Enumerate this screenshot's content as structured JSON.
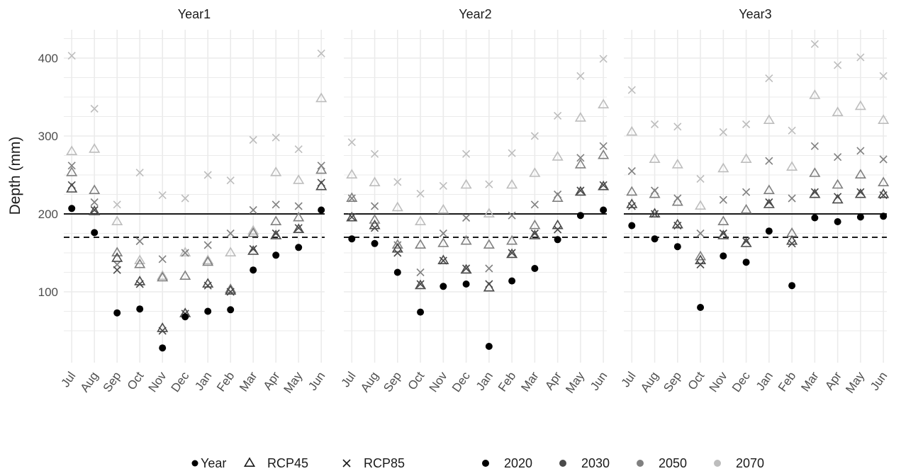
{
  "chart_data": {
    "type": "scatter",
    "ylabel": "Depth (mm)",
    "ylim": [
      0,
      440
    ],
    "y_ticks": [
      "100",
      "200",
      "300",
      "400"
    ],
    "categories": [
      "Jul",
      "Aug",
      "Sep",
      "Oct",
      "Nov",
      "Dec",
      "Jan",
      "Feb",
      "Mar",
      "Apr",
      "May",
      "Jun"
    ],
    "reference_lines": [
      {
        "style": "solid",
        "value": 200
      },
      {
        "style": "dashed",
        "value": 170
      }
    ],
    "grid": true,
    "legend": {
      "placement": "bottom",
      "title": "Year",
      "shape_items": [
        {
          "label": "RCP45",
          "shape": "triangle"
        },
        {
          "label": "RCP85",
          "shape": "cross"
        }
      ],
      "color_items": [
        {
          "label": "2020",
          "color": "#000000"
        },
        {
          "label": "2030",
          "color": "#4a4a4a"
        },
        {
          "label": "2050",
          "color": "#808080"
        },
        {
          "label": "2070",
          "color": "#bdbdbd"
        }
      ]
    },
    "panels": [
      {
        "title": "Year1",
        "baseline_2020": [
          207,
          176,
          73,
          78,
          28,
          68,
          75,
          77,
          128,
          147,
          157,
          205
        ],
        "rcp45": {
          "2030": [
            232,
            203,
            143,
            113,
            53,
            72,
            110,
            101,
            152,
            172,
            180,
            235
          ],
          "2050": [
            253,
            230,
            150,
            135,
            118,
            120,
            138,
            103,
            175,
            190,
            195,
            256
          ],
          "2070": [
            280,
            283,
            190,
            140,
            120,
            150,
            140,
            150,
            178,
            253,
            243,
            348
          ]
        },
        "rcp85": {
          "2030": [
            237,
            205,
            128,
            110,
            50,
            72,
            108,
            100,
            155,
            175,
            182,
            240
          ],
          "2050": [
            262,
            215,
            135,
            165,
            142,
            150,
            160,
            175,
            205,
            212,
            210,
            262
          ],
          "2070": [
            403,
            335,
            212,
            253,
            224,
            220,
            250,
            243,
            295,
            298,
            283,
            406
          ]
        }
      },
      {
        "title": "Year2",
        "baseline_2020": [
          168,
          162,
          125,
          74,
          107,
          110,
          30,
          114,
          130,
          167,
          198,
          205
        ],
        "rcp45": {
          "2030": [
            195,
            185,
            155,
            108,
            140,
            128,
            105,
            148,
            172,
            185,
            228,
            235
          ],
          "2050": [
            220,
            192,
            160,
            160,
            162,
            165,
            160,
            165,
            185,
            220,
            263,
            275
          ],
          "2070": [
            250,
            240,
            208,
            190,
            205,
            237,
            200,
            237,
            252,
            273,
            323,
            340
          ]
        },
        "rcp85": {
          "2030": [
            196,
            182,
            150,
            110,
            140,
            130,
            110,
            150,
            175,
            180,
            230,
            237
          ],
          "2050": [
            220,
            210,
            160,
            125,
            175,
            195,
            130,
            198,
            212,
            225,
            272,
            287
          ],
          "2070": [
            292,
            277,
            241,
            226,
            236,
            277,
            238,
            278,
            300,
            326,
            377,
            399
          ]
        }
      },
      {
        "title": "Year3",
        "baseline_2020": [
          185,
          168,
          158,
          80,
          146,
          138,
          178,
          108,
          195,
          190,
          196,
          197
        ],
        "rcp45": {
          "2030": [
            212,
            200,
            186,
            140,
            172,
            162,
            212,
            165,
            225,
            218,
            225,
            225
          ],
          "2050": [
            228,
            225,
            215,
            145,
            190,
            205,
            230,
            175,
            252,
            237,
            250,
            240
          ],
          "2070": [
            305,
            270,
            263,
            210,
            258,
            270,
            320,
            260,
            352,
            330,
            338,
            320
          ]
        },
        "rcp85": {
          "2030": [
            210,
            200,
            185,
            135,
            175,
            165,
            215,
            162,
            228,
            222,
            228,
            224
          ],
          "2050": [
            255,
            230,
            220,
            175,
            218,
            228,
            268,
            220,
            287,
            273,
            281,
            270
          ],
          "2070": [
            359,
            315,
            312,
            245,
            305,
            315,
            374,
            307,
            418,
            391,
            401,
            377
          ]
        }
      }
    ]
  }
}
